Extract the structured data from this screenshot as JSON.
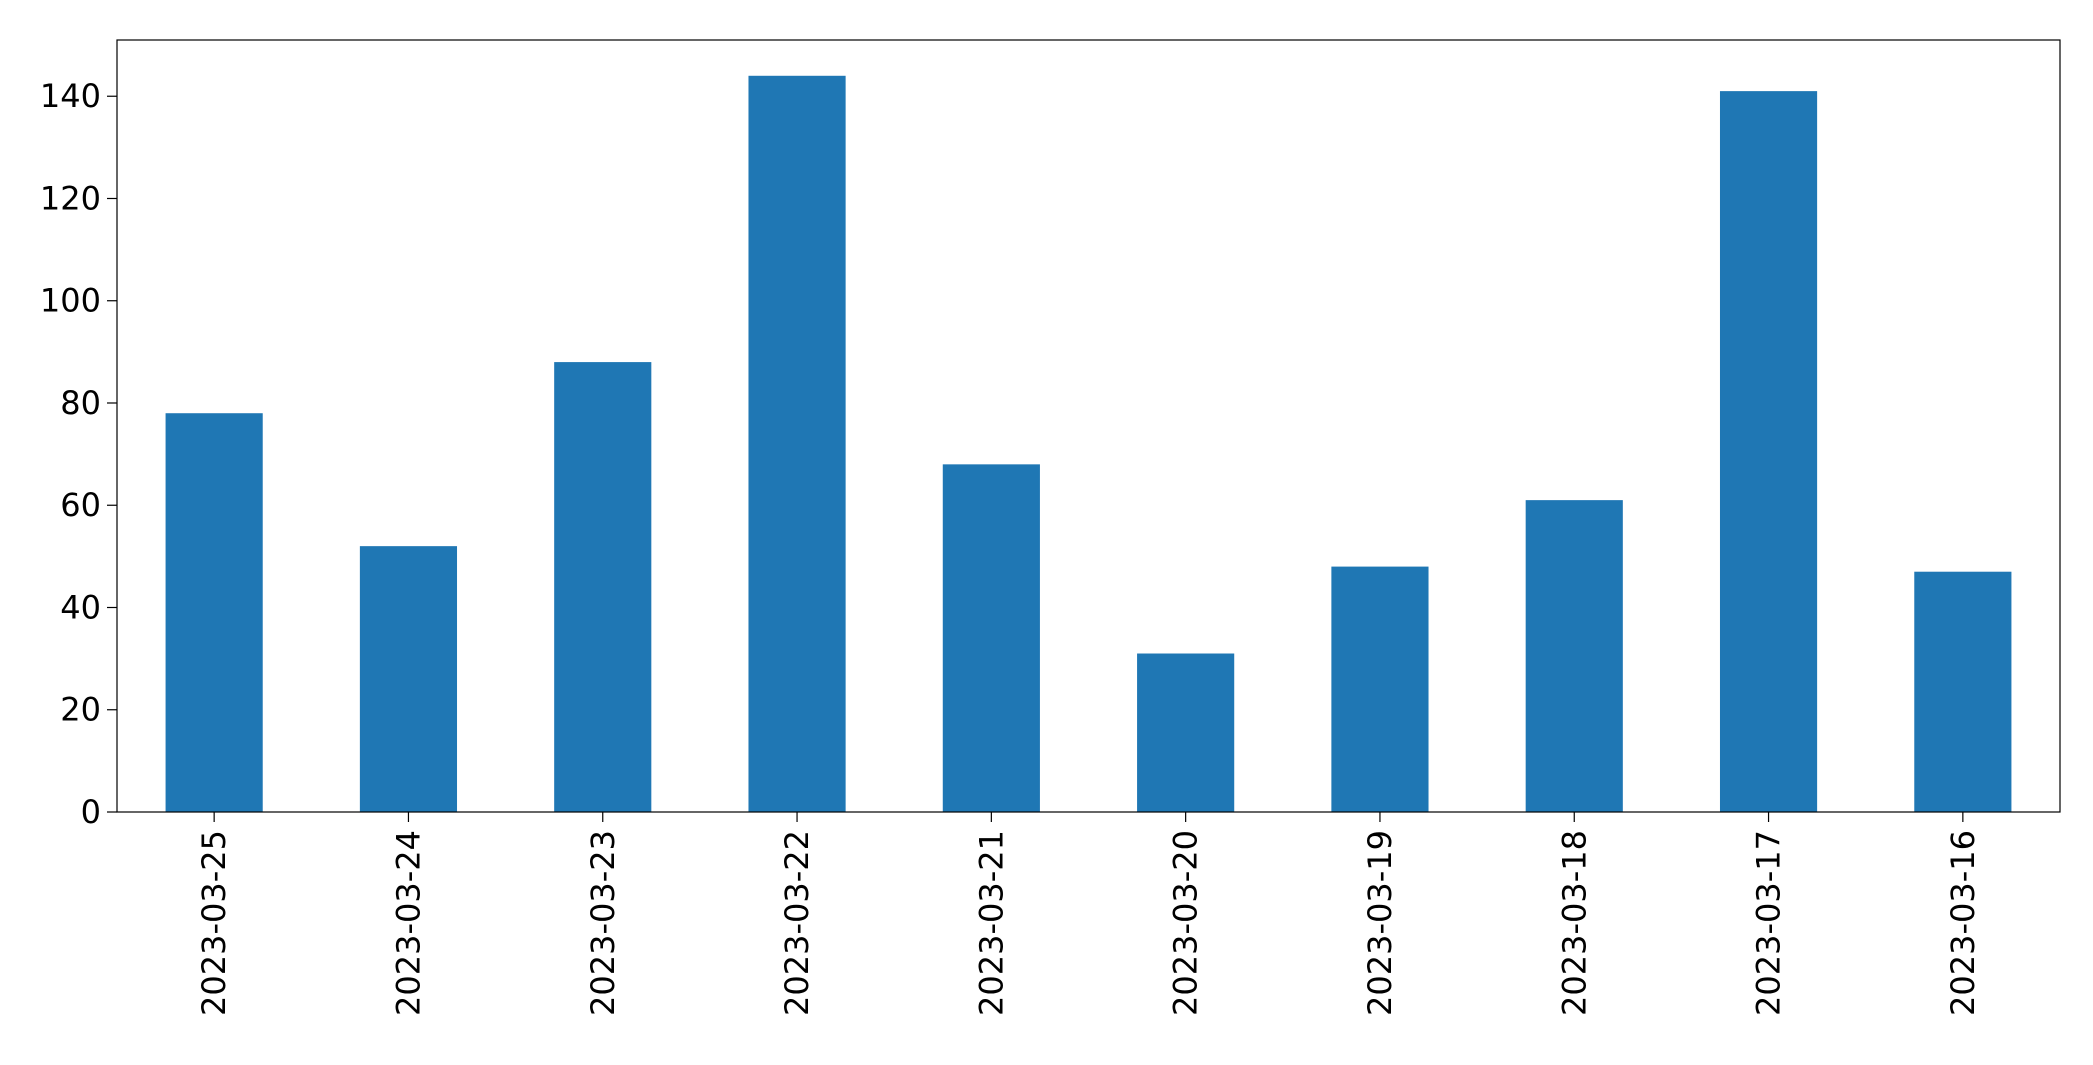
{
  "chart_data": {
    "type": "bar",
    "title": "",
    "xlabel": "",
    "ylabel": "",
    "categories": [
      "2023-03-25",
      "2023-03-24",
      "2023-03-23",
      "2023-03-22",
      "2023-03-21",
      "2023-03-20",
      "2023-03-19",
      "2023-03-18",
      "2023-03-17",
      "2023-03-16"
    ],
    "series": [
      {
        "values": [
          78,
          52,
          88,
          144,
          68,
          31,
          48,
          61,
          141,
          47
        ],
        "color": "#1f77b4"
      }
    ],
    "ylim": [
      0,
      151
    ],
    "yticks": [
      0,
      20,
      40,
      60,
      80,
      100,
      120,
      140
    ],
    "grid": false,
    "legend": "none"
  }
}
